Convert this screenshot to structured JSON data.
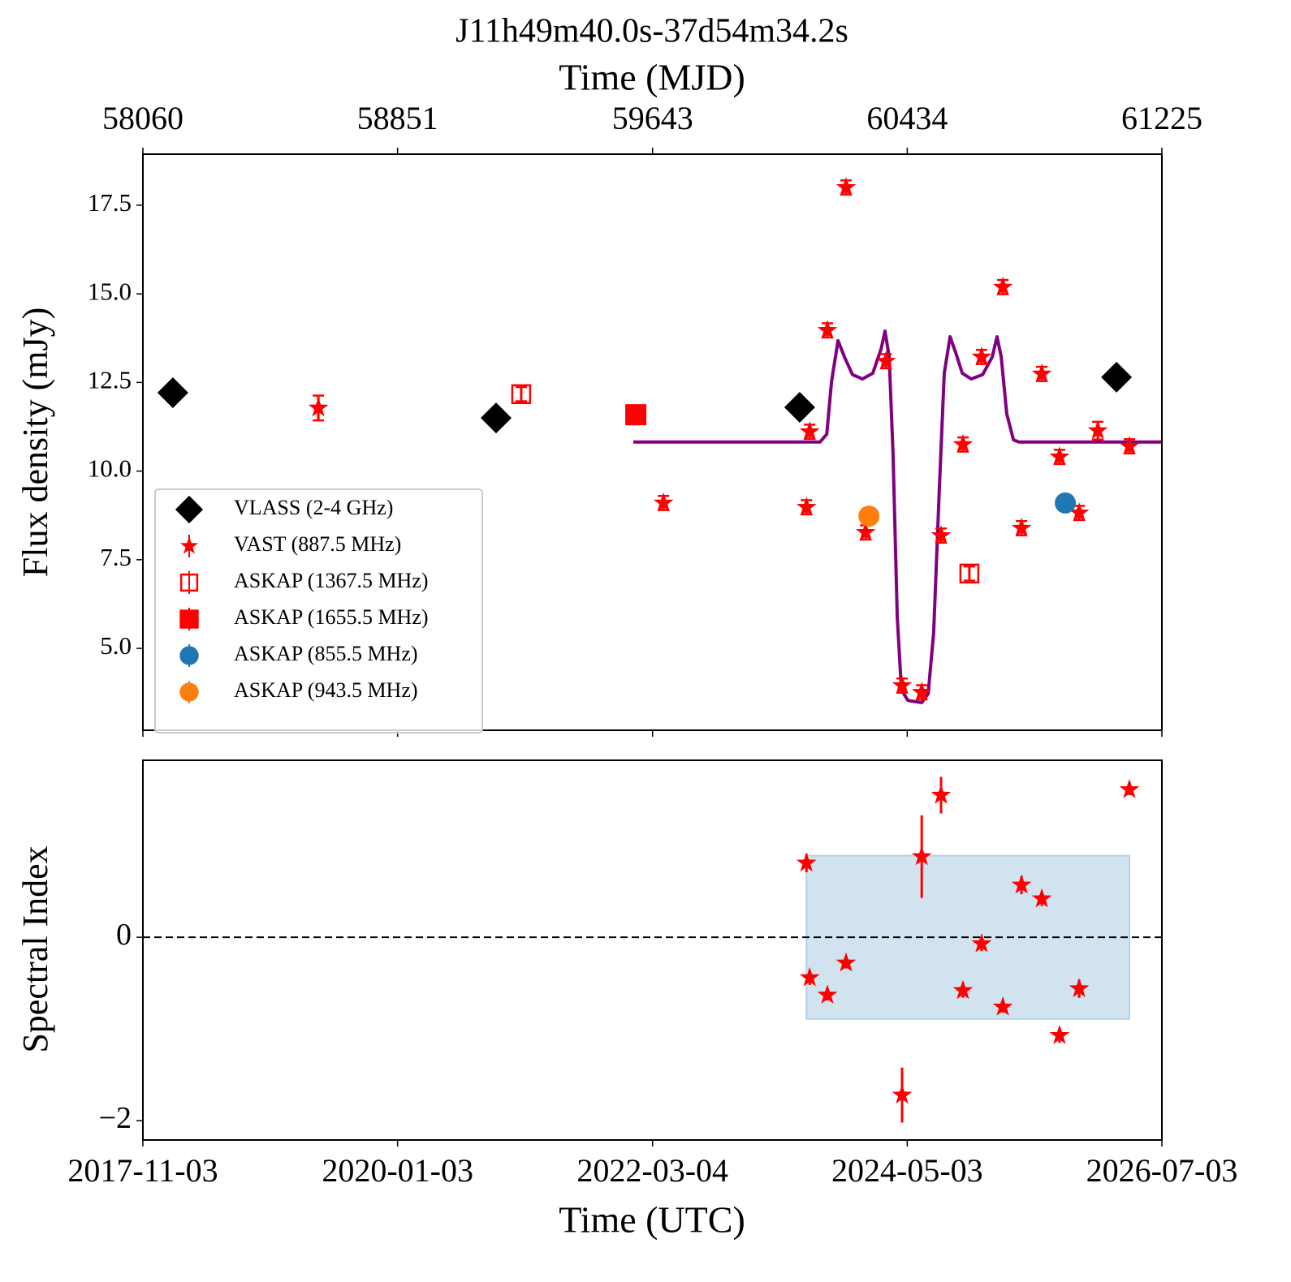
{
  "chart_data": [
    {
      "type": "scatter",
      "title": "J11h49m40.0s-37d54m34.2s",
      "x2label": "Time (MJD)",
      "ylabel": "Flux density (mJy)",
      "xlim": [
        58060,
        61225
      ],
      "xticks": [
        58060,
        58851,
        59643,
        60434,
        61225
      ],
      "ylim": [
        2.69,
        18.94
      ],
      "yticks": [
        {
          "value": 5,
          "label": "5.0"
        },
        7.5,
        {
          "value": 10,
          "label": "10.0"
        },
        12.5,
        {
          "value": 15,
          "label": "15.0"
        },
        17.5
      ],
      "legend": "lower left",
      "series": [
        {
          "name": "VLASS (2-4 GHz)",
          "color": "#000000",
          "marker": "diamond",
          "x": [
            58153,
            59157,
            60100,
            61084
          ],
          "values": [
            12.21,
            11.5,
            11.8,
            12.65
          ]
        },
        {
          "name": "VAST (887.5 MHz)",
          "color": "#ff0000",
          "marker": "star",
          "x": [
            58605,
            59677,
            60121,
            60131,
            60186,
            60244,
            60305,
            60368,
            60418,
            60479,
            60539,
            60607,
            60665,
            60731,
            60789,
            60852,
            60907,
            60968,
            61026,
            61124
          ],
          "values": [
            11.78,
            9.1,
            8.98,
            11.11,
            13.97,
            18.0,
            8.27,
            13.1,
            3.95,
            3.76,
            8.18,
            10.75,
            13.22,
            15.19,
            8.39,
            12.74,
            10.4,
            8.82,
            11.14,
            10.7
          ],
          "errors": [
            0.35,
            0.2,
            0.2,
            0.2,
            0.2,
            0.2,
            0.2,
            0.2,
            0.2,
            0.2,
            0.2,
            0.2,
            0.2,
            0.2,
            0.2,
            0.2,
            0.2,
            0.2,
            0.25,
            0.2
          ]
        },
        {
          "name": "ASKAP (1367.5 MHz)",
          "color": "#ff0000",
          "marker": "open-square",
          "x": [
            59235,
            60627
          ],
          "values": [
            12.17,
            7.11
          ],
          "errors": [
            0.2,
            0.2
          ]
        },
        {
          "name": "ASKAP (1655.5 MHz)",
          "color": "#ff0000",
          "marker": "square",
          "x": [
            59591
          ],
          "values": [
            11.59
          ]
        },
        {
          "name": "ASKAP (855.5 MHz)",
          "color": "#1f77b4",
          "marker": "circle",
          "x": [
            60925
          ],
          "values": [
            9.1
          ]
        },
        {
          "name": "ASKAP (943.5 MHz)",
          "color": "#ff7f0e",
          "marker": "circle",
          "x": [
            60315
          ],
          "values": [
            8.73
          ]
        }
      ],
      "model": {
        "color": "#800080",
        "x": [
          59583,
          60163,
          60184,
          60199,
          60219,
          60239,
          60264,
          60295,
          60327,
          60353,
          60365,
          60378,
          60390,
          60403,
          60416,
          60436,
          60479,
          60499,
          60516,
          60534,
          60549,
          60567,
          60585,
          60605,
          60633,
          60668,
          60698,
          60713,
          60726,
          60743,
          60764,
          60781,
          61225
        ],
        "values": [
          10.82,
          10.82,
          11.04,
          12.53,
          13.68,
          13.22,
          12.72,
          12.6,
          12.76,
          13.45,
          13.95,
          13.22,
          10.47,
          5.89,
          3.83,
          3.53,
          3.47,
          3.72,
          5.43,
          9.56,
          12.76,
          13.79,
          13.33,
          12.76,
          12.6,
          12.72,
          13.22,
          13.79,
          13.22,
          11.62,
          10.88,
          10.82,
          10.82
        ]
      }
    },
    {
      "type": "scatter",
      "xlabel": "Time (UTC)",
      "ylabel": "Spectral Index",
      "xlim": [
        58060,
        61225
      ],
      "xticks": [
        {
          "value": 58060,
          "label": "2017-11-03"
        },
        {
          "value": 58851,
          "label": "2020-01-03"
        },
        {
          "value": 59643,
          "label": "2022-03-04"
        },
        {
          "value": 60434,
          "label": "2024-05-03"
        },
        {
          "value": 61225,
          "label": "2026-07-03"
        }
      ],
      "ylim": [
        -2.21,
        1.93
      ],
      "yticks": [
        {
          "value": -2,
          "label": "−2"
        },
        0
      ],
      "reference_line": 0,
      "band": {
        "color": "#b4d0e6",
        "x": [
          60121,
          61124
        ],
        "values": [
          -0.89,
          0.89
        ]
      },
      "series": [
        {
          "color": "#ff0000",
          "marker": "star",
          "x": [
            60121,
            60131,
            60186,
            60244,
            60418,
            60479,
            60539,
            60607,
            60665,
            60731,
            60789,
            60852,
            60907,
            60968,
            61124
          ],
          "values": [
            0.81,
            -0.44,
            -0.63,
            -0.28,
            -1.72,
            0.88,
            1.55,
            -0.58,
            -0.07,
            -0.76,
            0.57,
            0.42,
            -1.07,
            -0.56,
            1.61
          ],
          "errors": [
            0.1,
            0.08,
            0.06,
            0.06,
            0.3,
            0.45,
            0.2,
            0.08,
            0.08,
            0.06,
            0.1,
            0.08,
            0.08,
            0.1,
            0.06
          ]
        }
      ]
    }
  ]
}
